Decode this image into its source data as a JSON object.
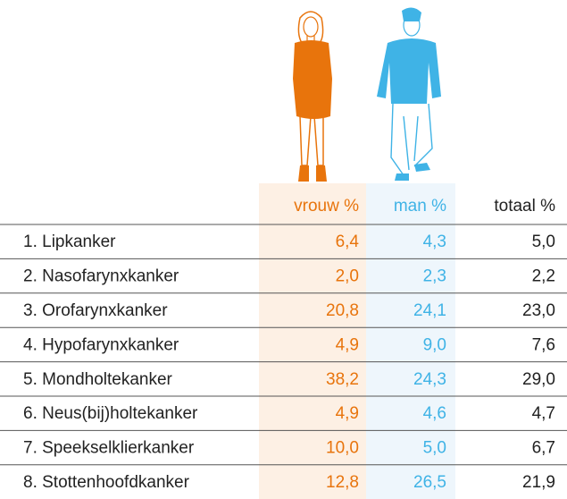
{
  "table": {
    "header": [
      "vrouw %",
      "man %",
      "totaal %"
    ],
    "rows": [
      [
        "1. Lipkanker",
        "6,4",
        "4,3",
        "5,0"
      ],
      [
        "2. Nasofarynxkanker",
        "2,0",
        "2,3",
        "2,2"
      ],
      [
        "3. Orofarynxkanker",
        "20,8",
        "24,1",
        "23,0"
      ],
      [
        "4. Hypofarynxkanker",
        "4,9",
        "9,0",
        "7,6"
      ],
      [
        "5. Mondholtekanker",
        "38,2",
        "24,3",
        "29,0"
      ],
      [
        "6. Neus(bij)holtekanker",
        "4,9",
        "4,6",
        "4,7"
      ],
      [
        "7. Speekselklierkanker",
        "10,0",
        "5,0",
        "6,7"
      ],
      [
        "8. Stottenhoofdkanker",
        "12,8",
        "26,5",
        "21,9"
      ]
    ]
  }
}
